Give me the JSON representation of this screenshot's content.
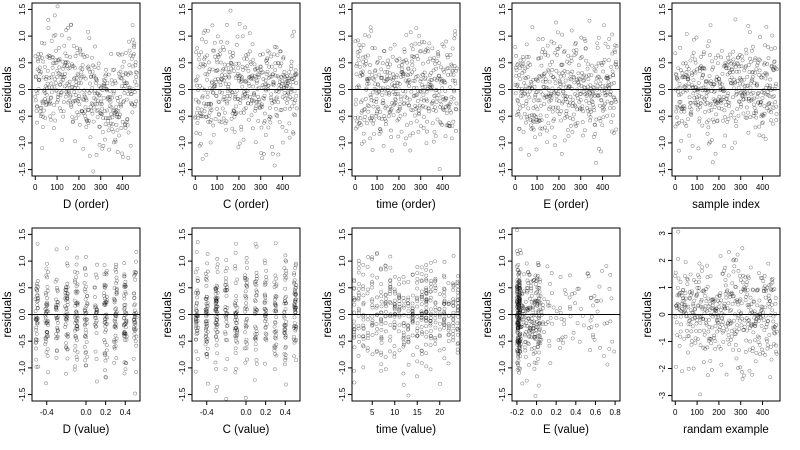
{
  "figure": {
    "background": "#ffffff",
    "point_color": "#000000",
    "point_opacity": 0.45,
    "marker": "open-circle",
    "reference_line_y": 0
  },
  "chart_data": [
    {
      "type": "scatter",
      "xlabel": "D (order)",
      "ylabel": "residuals",
      "xticks": [
        "0",
        "100",
        "200",
        "300",
        "400"
      ],
      "xtick_values": [
        0,
        100,
        200,
        300,
        400
      ],
      "xlim": [
        -15,
        480
      ],
      "yticks": [
        "-1.5",
        "-1.0",
        "-0.5",
        "0.0",
        "0.5",
        "1.0",
        "1.5"
      ],
      "ytick_values": [
        -1.5,
        -1.0,
        -0.5,
        0.0,
        0.5,
        1.0,
        1.5
      ],
      "ylim": [
        -1.62,
        1.62
      ],
      "ref_line": 0,
      "gen": {
        "kind": "uniform",
        "xmin": 0,
        "xmax": 465,
        "n": 470,
        "sd": 0.48,
        "trend": "wave",
        "seed": 11
      },
      "points": []
    },
    {
      "type": "scatter",
      "xlabel": "C (order)",
      "ylabel": "residuals",
      "xticks": [
        "0",
        "100",
        "200",
        "300",
        "400"
      ],
      "xtick_values": [
        0,
        100,
        200,
        300,
        400
      ],
      "xlim": [
        -15,
        480
      ],
      "yticks": [
        "-1.5",
        "-1.0",
        "-0.5",
        "0.0",
        "0.5",
        "1.0",
        "1.5"
      ],
      "ytick_values": [
        -1.5,
        -1.0,
        -0.5,
        0.0,
        0.5,
        1.0,
        1.5
      ],
      "ylim": [
        -1.62,
        1.62
      ],
      "ref_line": 0,
      "gen": {
        "kind": "uniform",
        "xmin": 0,
        "xmax": 465,
        "n": 470,
        "sd": 0.48,
        "trend": "flat",
        "seed": 23
      },
      "points": []
    },
    {
      "type": "scatter",
      "xlabel": "time (order)",
      "ylabel": "residuals",
      "xticks": [
        "0",
        "100",
        "200",
        "300",
        "400"
      ],
      "xtick_values": [
        0,
        100,
        200,
        300,
        400
      ],
      "xlim": [
        -15,
        480
      ],
      "yticks": [
        "-1.5",
        "-1.0",
        "-0.5",
        "0.0",
        "0.5",
        "1.0",
        "1.5"
      ],
      "ytick_values": [
        -1.5,
        -1.0,
        -0.5,
        0.0,
        0.5,
        1.0,
        1.5
      ],
      "ylim": [
        -1.62,
        1.62
      ],
      "ref_line": 0,
      "gen": {
        "kind": "uniform",
        "xmin": 0,
        "xmax": 465,
        "n": 470,
        "sd": 0.48,
        "trend": "flat",
        "seed": 37
      },
      "points": []
    },
    {
      "type": "scatter",
      "xlabel": "E (order)",
      "ylabel": "residuals",
      "xticks": [
        "0",
        "100",
        "200",
        "300",
        "400"
      ],
      "xtick_values": [
        0,
        100,
        200,
        300,
        400
      ],
      "xlim": [
        -15,
        480
      ],
      "yticks": [
        "-1.5",
        "-1.0",
        "-0.5",
        "0.0",
        "0.5",
        "1.0",
        "1.5"
      ],
      "ytick_values": [
        -1.5,
        -1.0,
        -0.5,
        0.0,
        0.5,
        1.0,
        1.5
      ],
      "ylim": [
        -1.62,
        1.62
      ],
      "ref_line": 0,
      "gen": {
        "kind": "uniform",
        "xmin": 0,
        "xmax": 465,
        "n": 470,
        "sd": 0.48,
        "trend": "flat",
        "seed": 41
      },
      "points": []
    },
    {
      "type": "scatter",
      "xlabel": "sample index",
      "ylabel": "residuals",
      "xticks": [
        "0",
        "100",
        "200",
        "300",
        "400"
      ],
      "xtick_values": [
        0,
        100,
        200,
        300,
        400
      ],
      "xlim": [
        -15,
        480
      ],
      "yticks": [
        "-1.5",
        "-1.0",
        "-0.5",
        "0.0",
        "0.5",
        "1.0",
        "1.5"
      ],
      "ytick_values": [
        -1.5,
        -1.0,
        -0.5,
        0.0,
        0.5,
        1.0,
        1.5
      ],
      "ylim": [
        -1.62,
        1.62
      ],
      "ref_line": 0,
      "gen": {
        "kind": "uniform",
        "xmin": 0,
        "xmax": 465,
        "n": 470,
        "sd": 0.48,
        "trend": "flat",
        "seed": 53
      },
      "points": []
    },
    {
      "type": "scatter",
      "xlabel": "D (value)",
      "ylabel": "residuals",
      "xticks": [
        "-0.4",
        "0.0",
        "0.2",
        "0.4"
      ],
      "xtick_values": [
        -0.4,
        0.0,
        0.2,
        0.4
      ],
      "xlim": [
        -0.55,
        0.55
      ],
      "yticks": [
        "-1.5",
        "-1.0",
        "-0.5",
        "0.0",
        "0.5",
        "1.0",
        "1.5"
      ],
      "ytick_values": [
        -1.5,
        -1.0,
        -0.5,
        0.0,
        0.5,
        1.0,
        1.5
      ],
      "ylim": [
        -1.62,
        1.62
      ],
      "ref_line": 0,
      "gen": {
        "kind": "columns",
        "columns": [
          -0.5,
          -0.4,
          -0.3,
          -0.2,
          -0.1,
          0.0,
          0.1,
          0.2,
          0.3,
          0.4,
          0.5
        ],
        "jitter": 0.015,
        "n": 470,
        "sd": 0.5,
        "seed": 61
      },
      "points": []
    },
    {
      "type": "scatter",
      "xlabel": "C (value)",
      "ylabel": "residuals",
      "xticks": [
        "-0.4",
        "0.0",
        "0.2",
        "0.4"
      ],
      "xtick_values": [
        -0.4,
        0.0,
        0.2,
        0.4
      ],
      "xlim": [
        -0.55,
        0.55
      ],
      "yticks": [
        "-1.5",
        "-1.0",
        "-0.5",
        "0.0",
        "0.5",
        "1.0",
        "1.5"
      ],
      "ytick_values": [
        -1.5,
        -1.0,
        -0.5,
        0.0,
        0.5,
        1.0,
        1.5
      ],
      "ylim": [
        -1.62,
        1.62
      ],
      "ref_line": 0,
      "gen": {
        "kind": "columns",
        "columns": [
          -0.5,
          -0.4,
          -0.3,
          -0.2,
          -0.1,
          0.0,
          0.1,
          0.2,
          0.3,
          0.4,
          0.5
        ],
        "jitter": 0.012,
        "n": 470,
        "sd": 0.5,
        "seed": 67
      },
      "points": []
    },
    {
      "type": "scatter",
      "xlabel": "time (value)",
      "ylabel": "residuals",
      "xticks": [
        "5",
        "10",
        "15",
        "20"
      ],
      "xtick_values": [
        5,
        10,
        15,
        20
      ],
      "xlim": [
        0.5,
        24.5
      ],
      "yticks": [
        "-1.5",
        "-1.0",
        "-0.5",
        "0.0",
        "0.5",
        "1.0",
        "1.5"
      ],
      "ytick_values": [
        -1.5,
        -1.0,
        -0.5,
        0.0,
        0.5,
        1.0,
        1.5
      ],
      "ylim": [
        -1.62,
        1.62
      ],
      "ref_line": 0,
      "gen": {
        "kind": "columns",
        "columns": [
          1,
          2,
          3,
          4,
          5,
          6,
          7,
          8,
          9,
          10,
          11,
          12,
          13,
          14,
          15,
          16,
          17,
          18,
          19,
          20,
          21,
          22,
          23,
          24
        ],
        "jitter": 0.08,
        "n": 470,
        "sd": 0.48,
        "seed": 71
      },
      "points": []
    },
    {
      "type": "scatter",
      "xlabel": "E (value)",
      "ylabel": "residuals",
      "xticks": [
        "-0.2",
        "0.0",
        "0.2",
        "0.4",
        "0.6",
        "0.8"
      ],
      "xtick_values": [
        -0.2,
        0.0,
        0.2,
        0.4,
        0.6,
        0.8
      ],
      "xlim": [
        -0.25,
        0.85
      ],
      "yticks": [
        "-1.5",
        "-1.0",
        "-0.5",
        "0.0",
        "0.5",
        "1.0",
        "1.5"
      ],
      "ytick_values": [
        -1.5,
        -1.0,
        -0.5,
        0.0,
        0.5,
        1.0,
        1.5
      ],
      "ylim": [
        -1.62,
        1.62
      ],
      "ref_line": 0,
      "gen": {
        "kind": "skewed",
        "xmin": -0.2,
        "xmax": 0.8,
        "n": 470,
        "sd": 0.48,
        "seed": 83
      },
      "points": []
    },
    {
      "type": "scatter",
      "xlabel": "randam example",
      "ylabel": "residuals",
      "xticks": [
        "0",
        "100",
        "200",
        "300",
        "400"
      ],
      "xtick_values": [
        0,
        100,
        200,
        300,
        400
      ],
      "xlim": [
        -15,
        480
      ],
      "yticks": [
        "-3",
        "-2",
        "-1",
        "0",
        "1",
        "2",
        "3"
      ],
      "ytick_values": [
        -3,
        -2,
        -1,
        0,
        1,
        2,
        3
      ],
      "ylim": [
        -3.2,
        3.2
      ],
      "ref_line": 0,
      "gen": {
        "kind": "uniform",
        "xmin": 0,
        "xmax": 465,
        "n": 470,
        "sd": 1.0,
        "trend": "flat",
        "seed": 97
      },
      "points": []
    }
  ]
}
